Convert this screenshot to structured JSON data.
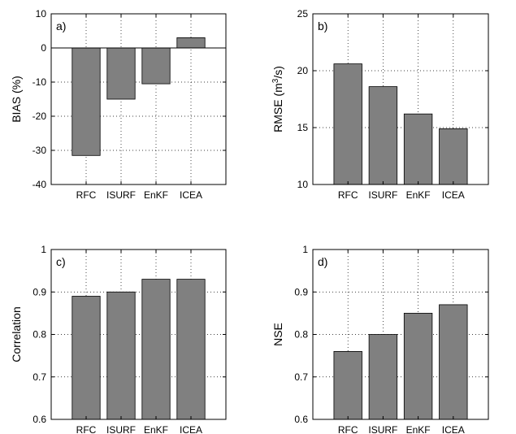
{
  "chart_data": [
    {
      "type": "bar",
      "panel_label": "a)",
      "categories": [
        "RFC",
        "ISURF",
        "EnKF",
        "ICEA"
      ],
      "values": [
        -31.5,
        -15,
        -10.5,
        3
      ],
      "ylabel": "BIAS (%)",
      "ylim": [
        -40,
        10
      ],
      "yticks": [
        -40,
        -30,
        -20,
        -10,
        0,
        10
      ],
      "baseline": 0,
      "zero_line": true,
      "grid": true,
      "bar_color": "#808080"
    },
    {
      "type": "bar",
      "panel_label": "b)",
      "categories": [
        "RFC",
        "ISURF",
        "EnKF",
        "ICEA"
      ],
      "values": [
        20.6,
        18.6,
        16.2,
        14.9
      ],
      "ylabel": "RMSE (m",
      "ylabel_sup": "3",
      "ylabel_suffix": "/s)",
      "ylim": [
        10,
        25
      ],
      "yticks": [
        10,
        15,
        20,
        25
      ],
      "baseline": 10,
      "grid": true,
      "bar_color": "#808080"
    },
    {
      "type": "bar",
      "panel_label": "c)",
      "categories": [
        "RFC",
        "ISURF",
        "EnKF",
        "ICEA"
      ],
      "values": [
        0.89,
        0.9,
        0.93,
        0.93
      ],
      "ylabel": "Correlation",
      "ylim": [
        0.6,
        1
      ],
      "yticks": [
        0.6,
        0.7,
        0.8,
        0.9,
        1
      ],
      "baseline": 0.6,
      "grid": true,
      "bar_color": "#808080"
    },
    {
      "type": "bar",
      "panel_label": "d)",
      "categories": [
        "RFC",
        "ISURF",
        "EnKF",
        "ICEA"
      ],
      "values": [
        0.76,
        0.8,
        0.85,
        0.87
      ],
      "ylabel": "NSE",
      "ylim": [
        0.6,
        1
      ],
      "yticks": [
        0.6,
        0.7,
        0.8,
        0.9,
        1
      ],
      "baseline": 0.6,
      "grid": true,
      "bar_color": "#808080"
    }
  ]
}
